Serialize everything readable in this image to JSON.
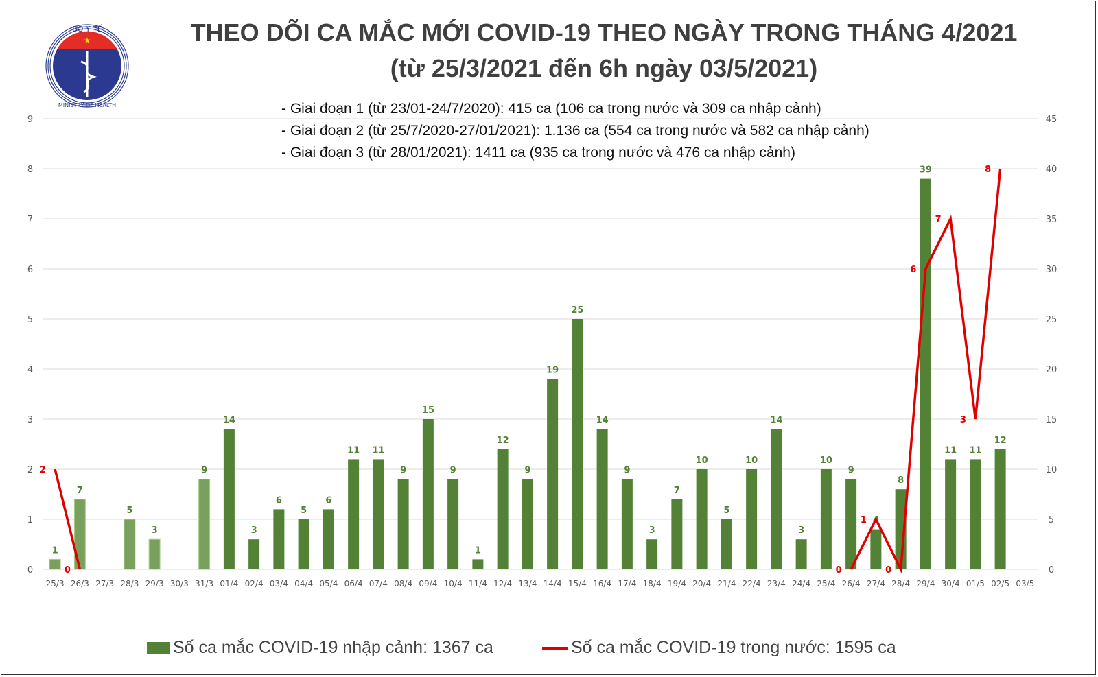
{
  "logo": {
    "top_text": "BỘ Y TẾ",
    "bottom_text": "MINISTRY OF HEALTH"
  },
  "title_line1": "THEO DÕI CA MẮC MỚI COVID-19 THEO NGÀY TRONG THÁNG 4/2021",
  "title_line2": "(từ 25/3/2021 đến 6h ngày 03/5/2021)",
  "notes": [
    "- Giai đoạn 1 (từ 23/01-24/7/2020): 415 ca (106 ca trong nước và 309 ca nhập cảnh)",
    "- Giai đoạn 2 (từ 25/7/2020-27/01/2021): 1.136 ca (554 ca trong nước và 582 ca nhập cảnh)",
    "- Giai đoạn 3 (từ 28/01/2021): 1411 ca (935 ca trong nước và 476 ca nhập cảnh)"
  ],
  "chart_data": {
    "type": "bar+line",
    "categories": [
      "25/3",
      "26/3",
      "27/3",
      "28/3",
      "29/3",
      "30/3",
      "31/3",
      "01/4",
      "02/4",
      "03/4",
      "04/4",
      "05/4",
      "06/4",
      "07/4",
      "08/4",
      "09/4",
      "10/4",
      "11/4",
      "12/4",
      "13/4",
      "14/4",
      "15/4",
      "16/4",
      "17/4",
      "18/4",
      "19/4",
      "20/4",
      "21/4",
      "22/4",
      "23/4",
      "24/4",
      "25/4",
      "26/4",
      "27/4",
      "28/4",
      "29/4",
      "30/4",
      "01/5",
      "02/5",
      "03/5"
    ],
    "series": [
      {
        "name": "Số ca mắc COVID-19 nhập cảnh: 1367 ca",
        "type": "bar",
        "axis": "right",
        "values": [
          1,
          7,
          null,
          5,
          3,
          null,
          9,
          14,
          3,
          6,
          5,
          6,
          11,
          11,
          9,
          15,
          9,
          1,
          12,
          9,
          19,
          25,
          14,
          9,
          3,
          7,
          10,
          5,
          10,
          14,
          3,
          10,
          9,
          4,
          8,
          39,
          11,
          11,
          12,
          null
        ],
        "color": "#538135",
        "light_color": "#7aa05e",
        "light_categories": [
          "25/3",
          "26/3",
          "27/3",
          "28/3",
          "29/3",
          "30/3",
          "31/3"
        ]
      },
      {
        "name": "Số ca mắc COVID-19 trong nước: 1595 ca",
        "type": "line",
        "axis": "left",
        "values": [
          2,
          0,
          null,
          null,
          null,
          null,
          null,
          null,
          null,
          null,
          null,
          null,
          null,
          null,
          null,
          null,
          null,
          null,
          null,
          null,
          null,
          null,
          null,
          null,
          null,
          null,
          null,
          null,
          null,
          null,
          null,
          null,
          0,
          1,
          0,
          6,
          7,
          3,
          8,
          null
        ],
        "color": "#e00000"
      }
    ],
    "left_axis": {
      "range": [
        0,
        9
      ],
      "ticks": [
        "0",
        "1",
        "2",
        "3",
        "4",
        "5",
        "6",
        "7",
        "8",
        "9"
      ]
    },
    "right_axis": {
      "range": [
        0,
        45
      ],
      "ticks": [
        "0",
        "5",
        "10",
        "15",
        "20",
        "25",
        "30",
        "35",
        "40",
        "45"
      ]
    },
    "grid": true,
    "legend_position": "bottom"
  }
}
